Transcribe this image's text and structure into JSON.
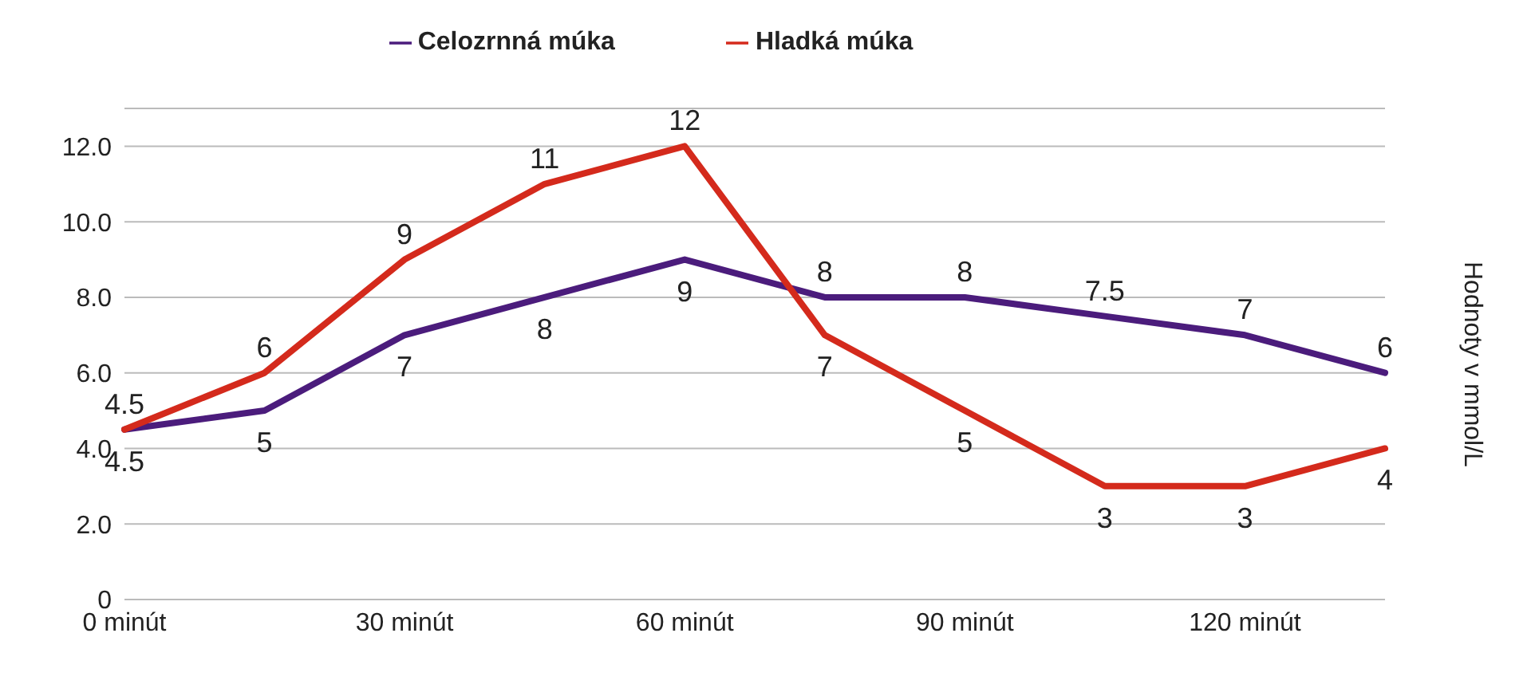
{
  "chart_data": {
    "type": "line",
    "ylabel": "Hodnoty v mmol/L",
    "categories": [
      "0 minút",
      null,
      "30 minút",
      null,
      "60 minút",
      null,
      "90 minút",
      null,
      "120 minút",
      null
    ],
    "series": [
      {
        "name": "Celozrnná múka",
        "color": "#4b1c7c",
        "values": [
          4.5,
          5,
          7,
          8,
          9,
          8,
          8,
          7.5,
          7,
          6
        ]
      },
      {
        "name": "Hladká múka",
        "color": "#d42a1c",
        "values": [
          4.5,
          6,
          9,
          11,
          12,
          7,
          5,
          3,
          3,
          4
        ]
      }
    ],
    "ylim": [
      0,
      13
    ],
    "yticks": [
      0,
      {
        "value": 2,
        "label": "2.0"
      },
      {
        "value": 4,
        "label": "4.0"
      },
      {
        "value": 6,
        "label": "6.0"
      },
      {
        "value": 8,
        "label": "8.0"
      },
      {
        "value": 10,
        "label": "10.0"
      },
      {
        "value": 12,
        "label": "12.0"
      }
    ],
    "grid": "y",
    "legend": "top",
    "marker": "none",
    "line_style": "solid",
    "data_labels": true
  }
}
